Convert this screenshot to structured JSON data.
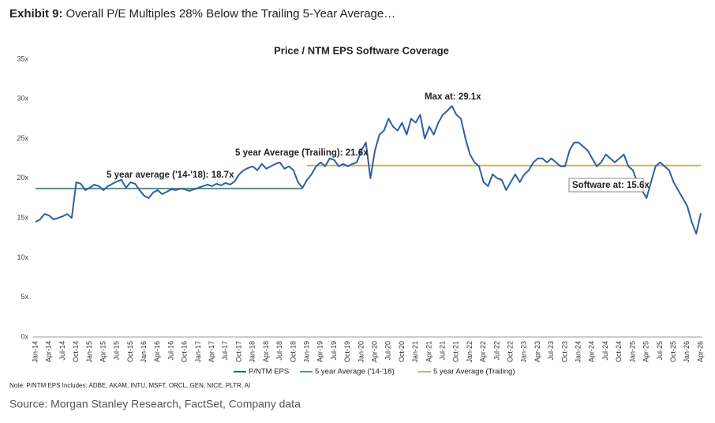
{
  "exhibit": "Exhibit 9:",
  "headline": "Overall P/E Multiples 28% Below the Trailing 5-Year Average…",
  "note": "Note: P/NTM EPS Includes: ADBE, AKAM, INTU, MSFT, ORCL, GEN, NICE, PLTR, AI",
  "source": "Source: Morgan Stanley Research, FactSet, Company data",
  "chart_data": {
    "type": "line",
    "title": "Price / NTM EPS Software Coverage",
    "annotations": [
      "5 year average ('14-'18): 18.7x",
      "5 year Average (Trailing): 21.6x",
      "Max at: 29.1x",
      "Software at: 15.6x"
    ],
    "ylim": [
      0,
      35
    ],
    "yticks": [
      {
        "value": 0,
        "label": "0x"
      },
      {
        "value": 5,
        "label": "5x"
      },
      {
        "value": 10,
        "label": "10x"
      },
      {
        "value": 15,
        "label": "15x"
      },
      {
        "value": 20,
        "label": "20x"
      },
      {
        "value": 25,
        "label": "25x"
      },
      {
        "value": 30,
        "label": "30x"
      },
      {
        "value": 35,
        "label": "35x"
      }
    ],
    "categories": [
      "Jan-14",
      null,
      null,
      "Apr-14",
      null,
      null,
      "Jul-14",
      null,
      null,
      "Oct-14",
      null,
      null,
      "Jan-15",
      null,
      null,
      "Apr-15",
      null,
      null,
      "Jul-15",
      null,
      null,
      "Oct-15",
      null,
      null,
      "Jan-16",
      null,
      null,
      "Apr-16",
      null,
      null,
      "Jul-16",
      null,
      null,
      "Oct-16",
      null,
      null,
      "Jan-17",
      null,
      null,
      "Apr-17",
      null,
      null,
      "Jul-17",
      null,
      null,
      "Oct-17",
      null,
      null,
      "Jan-18",
      null,
      null,
      "Apr-18",
      null,
      null,
      "Jul-18",
      null,
      null,
      "Oct-18",
      null,
      null,
      "Jan-19",
      null,
      null,
      "Apr-19",
      null,
      null,
      "Jul-19",
      null,
      null,
      "Oct-19",
      null,
      null,
      "Jan-20",
      null,
      null,
      "Apr-20",
      null,
      null,
      "Jul-20",
      null,
      null,
      "Oct-20",
      null,
      null,
      "Jan-21",
      null,
      null,
      "Apr-21",
      null,
      null,
      "Jul-21",
      null,
      null,
      "Oct-21",
      null,
      null,
      "Jan-22",
      null,
      null,
      "Apr-22",
      null,
      null,
      "Jul-22",
      null,
      null,
      "Oct-22",
      null,
      null,
      "Jan-23",
      null,
      null,
      "Apr-23",
      null,
      null,
      "Jul-23",
      null,
      null,
      "Oct-23",
      null,
      null,
      "Jan-24",
      null,
      null,
      "Apr-24",
      null,
      null,
      "Jul-24",
      null,
      null,
      "Oct-24",
      null,
      null,
      "Jan-25",
      null,
      null,
      "Apr-25",
      null,
      null,
      "Jul-25",
      null,
      null,
      "Oct-25",
      null,
      null,
      "Jan-26",
      null,
      null,
      "Apr-26"
    ],
    "series": [
      {
        "name": "P/NTM EPS",
        "color": "#2e5eaa",
        "values": [
          14.5,
          14.8,
          15.5,
          15.3,
          14.8,
          15.0,
          15.2,
          15.5,
          15.0,
          19.5,
          19.3,
          18.5,
          18.8,
          19.2,
          19.0,
          18.5,
          19.0,
          19.3,
          19.6,
          19.8,
          18.8,
          19.5,
          19.3,
          18.5,
          17.8,
          17.5,
          18.2,
          18.5,
          18.0,
          18.3,
          18.6,
          18.5,
          18.7,
          18.6,
          18.4,
          18.6,
          18.8,
          19.0,
          19.2,
          19.0,
          19.3,
          19.1,
          19.4,
          19.2,
          19.6,
          20.5,
          21.0,
          21.3,
          21.5,
          21.0,
          21.8,
          21.2,
          21.5,
          21.8,
          22.0,
          21.2,
          21.5,
          21.0,
          19.5,
          18.8,
          19.8,
          20.5,
          21.5,
          22.0,
          21.5,
          22.5,
          22.3,
          21.5,
          21.8,
          21.5,
          21.8,
          22.0,
          23.5,
          24.5,
          20.0,
          23.5,
          25.5,
          26.0,
          27.5,
          26.5,
          26.0,
          27.0,
          25.5,
          27.5,
          27.0,
          28.0,
          25.0,
          26.5,
          25.5,
          27.0,
          28.0,
          28.5,
          29.1,
          28.0,
          27.5,
          25.0,
          23.0,
          22.0,
          21.5,
          19.5,
          19.0,
          20.5,
          20.0,
          19.8,
          18.5,
          19.5,
          20.5,
          19.5,
          20.5,
          21.0,
          22.0,
          22.5,
          22.5,
          22.0,
          22.5,
          22.0,
          21.5,
          21.5,
          23.5,
          24.5,
          24.5,
          24.0,
          23.5,
          22.5,
          21.5,
          22.0,
          23.0,
          22.5,
          22.0,
          22.5,
          23.0,
          21.5,
          21.0,
          19.5,
          18.5,
          17.5,
          19.5,
          21.5,
          22.0,
          21.5,
          21.0,
          19.5,
          18.5,
          17.5,
          16.5,
          14.5,
          13.0,
          15.6
        ]
      },
      {
        "name": "5 year Average ('14-'18)",
        "color": "#4a9a86",
        "values": [
          18.7,
          18.7,
          18.7,
          18.7,
          18.7,
          18.7,
          18.7,
          18.7,
          18.7,
          18.7,
          18.7,
          18.7,
          18.7,
          18.7,
          18.7,
          18.7,
          18.7,
          18.7,
          18.7,
          18.7,
          18.7,
          18.7,
          18.7,
          18.7,
          18.7,
          18.7,
          18.7,
          18.7,
          18.7,
          18.7,
          18.7,
          18.7,
          18.7,
          18.7,
          18.7,
          18.7,
          18.7,
          18.7,
          18.7,
          18.7,
          18.7,
          18.7,
          18.7,
          18.7,
          18.7,
          18.7,
          18.7,
          18.7,
          18.7,
          18.7,
          18.7,
          18.7,
          18.7,
          18.7,
          18.7,
          18.7,
          18.7,
          18.7,
          18.7,
          18.7,
          null,
          null,
          null,
          null,
          null,
          null,
          null,
          null,
          null,
          null,
          null,
          null,
          null,
          null,
          null,
          null,
          null,
          null,
          null,
          null,
          null,
          null,
          null,
          null,
          null,
          null,
          null,
          null,
          null,
          null,
          null,
          null,
          null,
          null,
          null,
          null,
          null,
          null,
          null,
          null,
          null,
          null,
          null,
          null,
          null,
          null,
          null,
          null,
          null,
          null,
          null,
          null,
          null,
          null,
          null,
          null,
          null,
          null,
          null,
          null,
          null,
          null,
          null,
          null,
          null,
          null,
          null,
          null,
          null,
          null,
          null,
          null,
          null,
          null,
          null,
          null,
          null,
          null,
          null,
          null,
          null,
          null,
          null,
          null,
          null,
          null,
          null,
          null
        ]
      },
      {
        "name": "5 year Average (Trailing)",
        "color": "#c9b26b",
        "values": [
          null,
          null,
          null,
          null,
          null,
          null,
          null,
          null,
          null,
          null,
          null,
          null,
          null,
          null,
          null,
          null,
          null,
          null,
          null,
          null,
          null,
          null,
          null,
          null,
          null,
          null,
          null,
          null,
          null,
          null,
          null,
          null,
          null,
          null,
          null,
          null,
          null,
          null,
          null,
          null,
          null,
          null,
          null,
          null,
          null,
          null,
          null,
          null,
          null,
          null,
          null,
          null,
          null,
          null,
          null,
          null,
          null,
          null,
          null,
          null,
          21.6,
          21.6,
          21.6,
          21.6,
          21.6,
          21.6,
          21.6,
          21.6,
          21.6,
          21.6,
          21.6,
          21.6,
          21.6,
          21.6,
          21.6,
          21.6,
          21.6,
          21.6,
          21.6,
          21.6,
          21.6,
          21.6,
          21.6,
          21.6,
          21.6,
          21.6,
          21.6,
          21.6,
          21.6,
          21.6,
          21.6,
          21.6,
          21.6,
          21.6,
          21.6,
          21.6,
          21.6,
          21.6,
          21.6,
          21.6,
          21.6,
          21.6,
          21.6,
          21.6,
          21.6,
          21.6,
          21.6,
          21.6,
          21.6,
          21.6,
          21.6,
          21.6,
          21.6,
          21.6,
          21.6,
          21.6,
          21.6,
          21.6,
          21.6,
          21.6,
          21.6,
          21.6,
          21.6,
          21.6,
          21.6,
          21.6,
          21.6,
          21.6,
          21.6,
          21.6,
          21.6,
          21.6,
          21.6,
          21.6,
          21.6,
          21.6,
          21.6,
          21.6,
          21.6,
          21.6,
          21.6,
          21.6,
          21.6,
          21.6,
          21.6,
          21.6,
          21.6,
          21.6
        ]
      }
    ]
  }
}
